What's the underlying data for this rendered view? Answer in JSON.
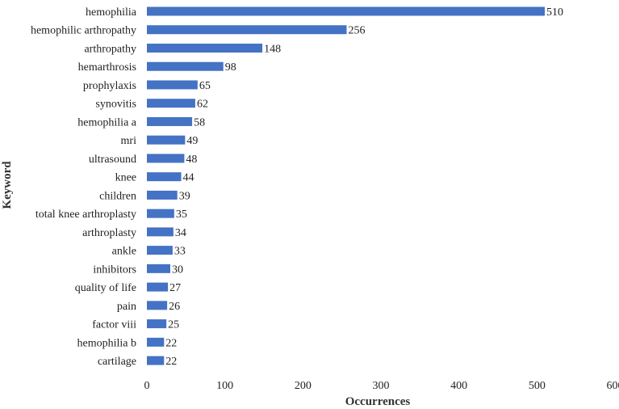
{
  "chart_data": {
    "type": "bar",
    "orientation": "horizontal",
    "categories": [
      "hemophilia",
      "hemophilic arthropathy",
      "arthropathy",
      "hemarthrosis",
      "prophylaxis",
      "synovitis",
      "hemophilia a",
      "mri",
      "ultrasound",
      "knee",
      "children",
      "total knee arthroplasty",
      "arthroplasty",
      "ankle",
      "inhibitors",
      "quality of life",
      "pain",
      "factor viii",
      "hemophilia b",
      "cartilage"
    ],
    "values": [
      510,
      256,
      148,
      98,
      65,
      62,
      58,
      49,
      48,
      44,
      39,
      35,
      34,
      33,
      30,
      27,
      26,
      25,
      22,
      22
    ],
    "xlabel": "Occurrences",
    "ylabel": "Keyword",
    "xlim": [
      0,
      600
    ],
    "xticks": [
      0,
      100,
      200,
      300,
      400,
      500,
      600
    ],
    "grid": false,
    "data_labels": true,
    "bar_color": "#4472c4"
  }
}
